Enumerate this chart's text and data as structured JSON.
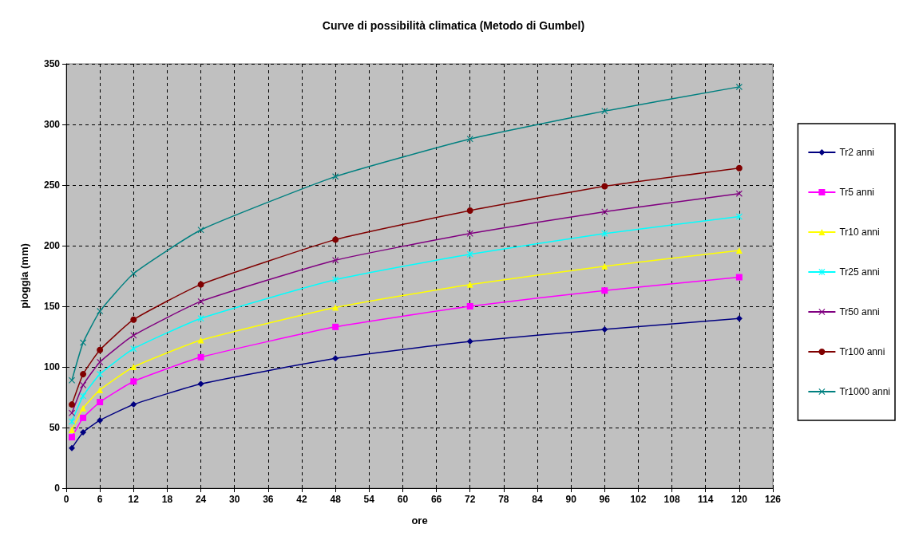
{
  "chart_data": {
    "type": "line",
    "title": "Curve di possibilità climatica (Metodo di Gumbel)",
    "xlabel": "ore",
    "ylabel": "pioggia (mm)",
    "x": [
      1,
      3,
      6,
      12,
      24,
      48,
      72,
      96,
      120
    ],
    "series": [
      {
        "name": "Tr2 anni",
        "color": "#000080",
        "marker": "diamond",
        "values": [
          33,
          46,
          56,
          69,
          86,
          107,
          121,
          131,
          140
        ]
      },
      {
        "name": "Tr5 anni",
        "color": "#ff00ff",
        "marker": "square",
        "values": [
          42,
          58,
          71,
          88,
          108,
          133,
          150,
          163,
          174
        ]
      },
      {
        "name": "Tr10 anni",
        "color": "#ffff00",
        "marker": "triangle",
        "values": [
          48,
          66,
          81,
          100,
          122,
          149,
          168,
          183,
          196
        ]
      },
      {
        "name": "Tr25 anni",
        "color": "#00ffff",
        "marker": "star",
        "values": [
          55,
          76,
          94,
          115,
          140,
          172,
          193,
          210,
          224
        ]
      },
      {
        "name": "Tr50 anni",
        "color": "#800080",
        "marker": "cross",
        "values": [
          62,
          85,
          104,
          126,
          154,
          188,
          210,
          228,
          243
        ]
      },
      {
        "name": "Tr100 anni",
        "color": "#800000",
        "marker": "circle",
        "values": [
          69,
          94,
          114,
          139,
          168,
          205,
          229,
          249,
          264
        ]
      },
      {
        "name": "Tr1000 anni",
        "color": "#008080",
        "marker": "cross",
        "values": [
          89,
          120,
          146,
          177,
          213,
          257,
          288,
          311,
          331
        ]
      }
    ],
    "xlim": [
      0,
      126
    ],
    "xticks": [
      0,
      6,
      12,
      18,
      24,
      30,
      36,
      42,
      48,
      54,
      60,
      66,
      72,
      78,
      84,
      90,
      96,
      102,
      108,
      114,
      120,
      126
    ],
    "ylim": [
      0,
      350
    ],
    "yticks": [
      0,
      50,
      100,
      150,
      200,
      250,
      300,
      350
    ],
    "grid": true,
    "legend": "right",
    "line_style": "solid"
  }
}
